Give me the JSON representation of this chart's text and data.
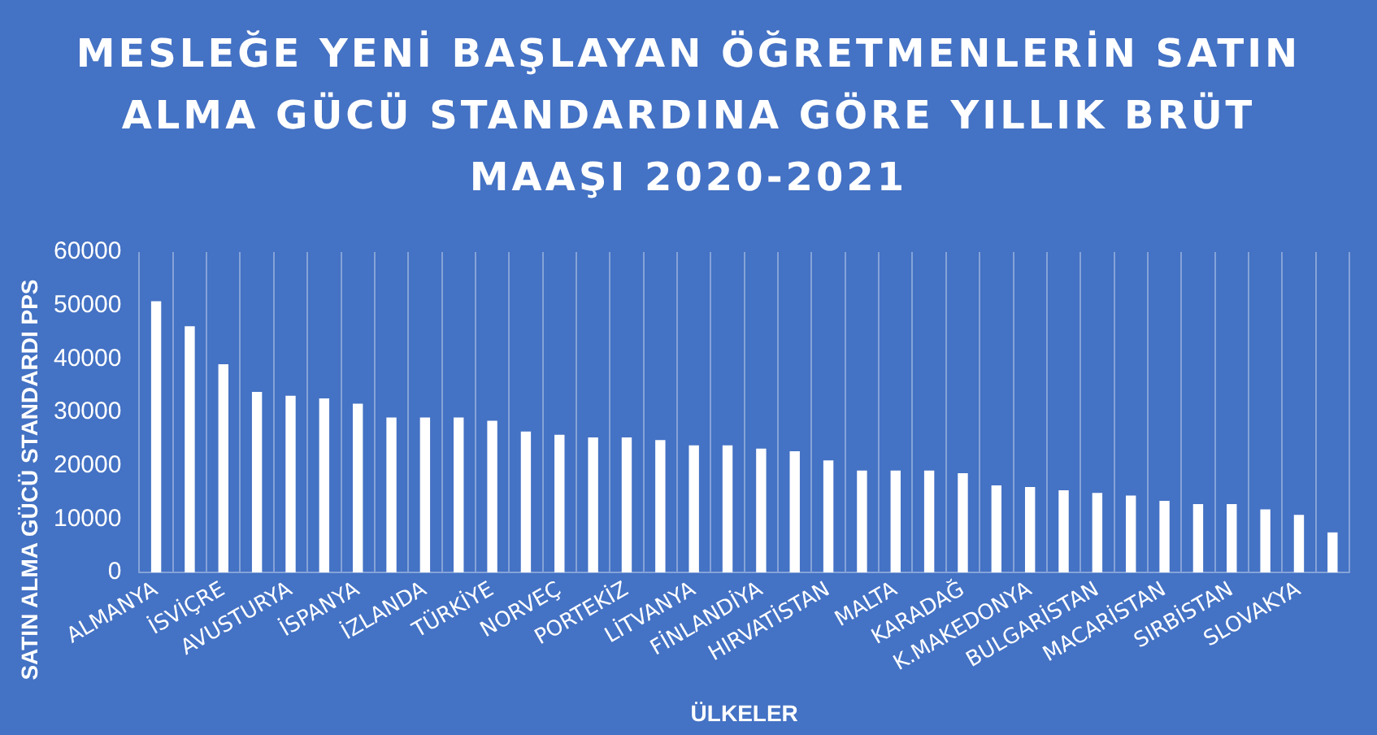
{
  "chart_data": {
    "type": "bar",
    "title": "MESLEĞE YENİ BAŞLAYAN ÖĞRETMENLERİN SATIN ALMA GÜCÜ STANDARDINA GÖRE YILLIK BRÜT MAAŞI 2020-2021",
    "xlabel": "ÜLKELER",
    "ylabel": "SATIN ALMA GÜCÜ STANDARDI PPS",
    "categories": [
      "ALMANYA",
      null,
      "İSVİÇRE",
      null,
      "AVUSTURYA",
      null,
      "İSPANYA",
      null,
      "İZLANDA",
      null,
      "TÜRKİYE",
      null,
      "NORVEÇ",
      null,
      "PORTEKİZ",
      null,
      "LİTVANYA",
      null,
      "FİNLANDİYA",
      null,
      "HIRVATİSTAN",
      null,
      "MALTA",
      null,
      "KARADAĞ",
      null,
      "K.MAKEDONYA",
      null,
      "BULGARİSTAN",
      null,
      "MACARİSTAN",
      null,
      "SIRBİSTAN",
      null,
      "SLOVAKYA",
      null
    ],
    "values": [
      50800,
      46100,
      39000,
      33800,
      33100,
      32600,
      31600,
      29000,
      29000,
      29000,
      28400,
      26400,
      25800,
      25300,
      25300,
      24800,
      23800,
      23800,
      23200,
      22700,
      21000,
      19100,
      19100,
      19100,
      18600,
      16300,
      16000,
      15400,
      14900,
      14400,
      13400,
      12800,
      12800,
      11800,
      10800,
      7500
    ],
    "color": "#ffffff",
    "ylim": [
      0,
      60000
    ],
    "yticks": [
      0,
      10000,
      20000,
      30000,
      40000,
      50000,
      60000
    ],
    "grid": "x"
  }
}
